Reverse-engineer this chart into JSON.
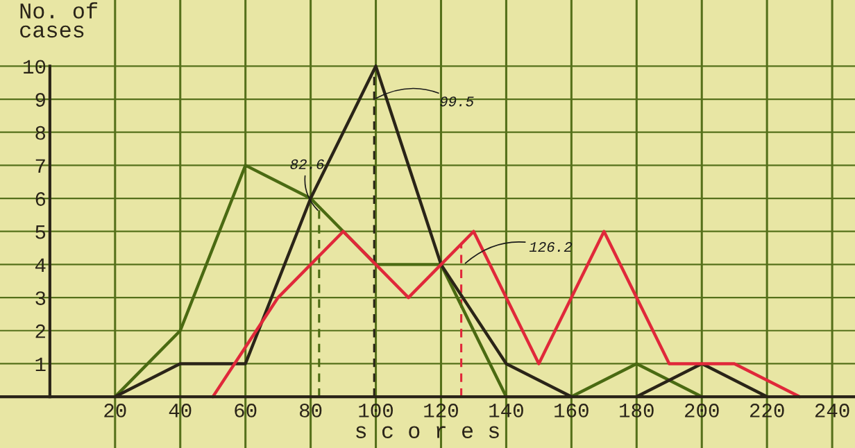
{
  "chart_data": {
    "type": "line",
    "xlabel": "s c o r e s",
    "ylabel": "No. of\ncases",
    "xlim": [
      -15.3,
      247
    ],
    "ylim": [
      -1.55,
      12.0
    ],
    "xticks": [
      20,
      40,
      60,
      80,
      100,
      120,
      140,
      160,
      180,
      200,
      220,
      240
    ],
    "yticks": [
      1,
      2,
      3,
      4,
      5,
      6,
      7,
      8,
      9,
      10
    ],
    "grid": true,
    "marker": "none",
    "line_style": "solid",
    "series": [
      {
        "color": "#4a6a12",
        "x": [
          20,
          40,
          60,
          80,
          100,
          120,
          140,
          160,
          180,
          200
        ],
        "values": [
          0,
          2,
          7,
          6,
          4,
          4,
          0,
          0,
          1,
          0
        ]
      },
      {
        "color": "#2a2418",
        "x": [
          20,
          40,
          60,
          80,
          100,
          120,
          140,
          160
        ],
        "values": [
          0,
          1,
          1,
          6,
          10,
          4,
          1,
          0
        ]
      },
      {
        "color": "#2a2418",
        "x": [
          180,
          200,
          220
        ],
        "values": [
          0,
          1,
          0
        ]
      },
      {
        "color": "#e0283a",
        "x": [
          50,
          70,
          90,
          110,
          130,
          150,
          170,
          190,
          210,
          230
        ],
        "values": [
          0,
          3,
          5,
          3,
          5,
          1,
          5,
          1,
          1,
          0
        ]
      }
    ],
    "ref_lines": [
      {
        "axis": "x",
        "value": 82.6,
        "color": "#4a6a12",
        "line_style": "dashed"
      },
      {
        "axis": "x",
        "value": 99.5,
        "color": "#2a2418",
        "line_style": "dashed"
      },
      {
        "axis": "x",
        "value": 126.2,
        "color": "#e0283a",
        "line_style": "dashed"
      }
    ],
    "annotations": [
      {
        "text": "82.6",
        "x": 82.6,
        "y": 5.6
      },
      {
        "text": "99.5",
        "x": 99.5,
        "y": 9.0
      },
      {
        "text": "126.2",
        "x": 127,
        "y": 4.0
      }
    ]
  }
}
